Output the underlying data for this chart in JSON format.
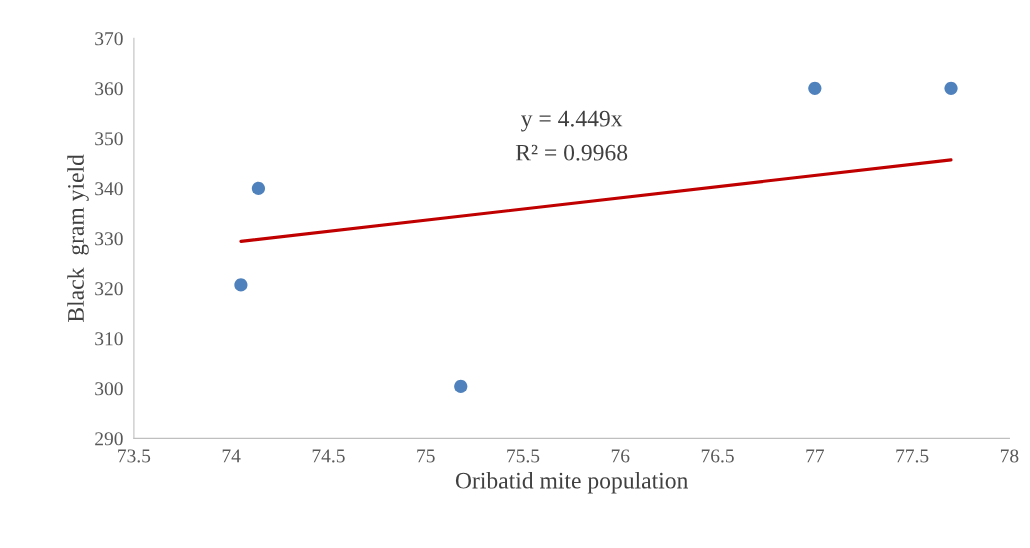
{
  "chart_data": {
    "type": "scatter",
    "xlabel": "Oribatid mite population",
    "ylabel": "Black  gram yield",
    "x": [
      74.05,
      74.14,
      75.18,
      77.0,
      77.7
    ],
    "series": [
      {
        "color": "#4f81bd",
        "marker": "circle",
        "values": [
          320.7,
          340,
          300.4,
          360,
          360
        ]
      },
      {
        "type": "line",
        "color": "#c00000",
        "x": [
          74.05,
          77.7
        ],
        "values": [
          329.4,
          345.7
        ]
      }
    ],
    "annotations": [
      "y = 4.449x",
      "R² = 0.9968"
    ],
    "xlim": [
      73.5,
      78
    ],
    "xticks": [
      73.5,
      74,
      74.5,
      75,
      75.5,
      76,
      76.5,
      77,
      77.5,
      78
    ],
    "ylim": [
      290,
      370
    ],
    "yticks": [
      290,
      300,
      310,
      320,
      330,
      340,
      350,
      360,
      370
    ],
    "grid": false,
    "legend": false
  }
}
